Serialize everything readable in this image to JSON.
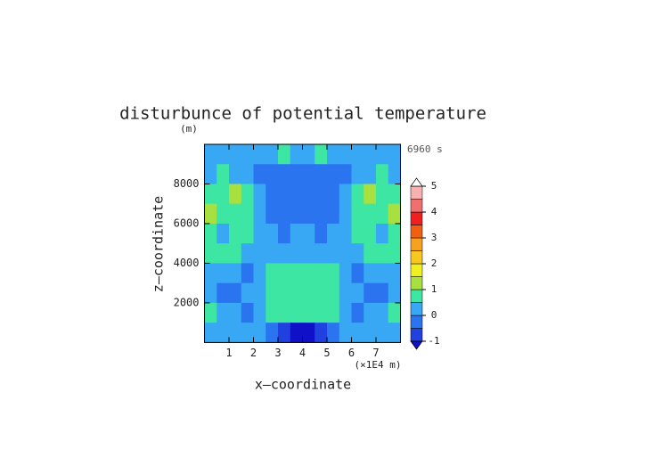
{
  "chart_data": {
    "type": "contour",
    "title": "disturbunce of potential temperature",
    "y_unit": "(m)",
    "time_label": "6960 s",
    "x_label": "x—coordinate",
    "x_unit": "(×1E4 m)",
    "y_label": "z—coordinate",
    "xlim": [
      0,
      8
    ],
    "xticks": [
      1,
      2,
      3,
      4,
      5,
      6,
      7
    ],
    "ylim": [
      0,
      10000
    ],
    "yticks": [
      2000,
      4000,
      6000,
      8000
    ],
    "x": [
      0.25,
      0.75,
      1.25,
      1.75,
      2.25,
      2.75,
      3.25,
      3.75,
      4.25,
      4.75,
      5.25,
      5.75,
      6.25,
      6.75,
      7.25,
      7.75
    ],
    "y": [
      9500,
      8500,
      7500,
      6500,
      5500,
      4500,
      3500,
      2500,
      1500,
      500
    ],
    "z": [
      [
        0.2,
        0.2,
        0.2,
        0.3,
        0.2,
        0.3,
        0.7,
        0.3,
        0.3,
        0.7,
        0.3,
        0.2,
        0.3,
        0.2,
        0.2,
        0.2
      ],
      [
        0.3,
        0.6,
        0.4,
        0.1,
        -0.2,
        -0.3,
        -0.3,
        -0.2,
        -0.2,
        -0.3,
        -0.3,
        -0.2,
        0.1,
        0.4,
        0.6,
        0.3
      ],
      [
        0.6,
        0.8,
        1.1,
        0.6,
        0.1,
        -0.2,
        -0.3,
        -0.3,
        -0.3,
        -0.3,
        -0.2,
        0.1,
        0.6,
        1.1,
        0.8,
        0.6
      ],
      [
        1.1,
        0.7,
        0.6,
        0.7,
        0.2,
        -0.2,
        -0.3,
        -0.2,
        -0.2,
        -0.3,
        -0.2,
        0.2,
        0.7,
        0.6,
        0.7,
        1.1
      ],
      [
        0.8,
        0.3,
        0.7,
        0.6,
        0.3,
        0.1,
        -0.2,
        0.1,
        0.1,
        -0.2,
        0.1,
        0.3,
        0.6,
        0.7,
        0.3,
        0.8
      ],
      [
        0.6,
        0.6,
        0.7,
        0.3,
        0.2,
        0.2,
        0.1,
        0.2,
        0.2,
        0.1,
        0.2,
        0.2,
        0.3,
        0.7,
        0.6,
        0.6
      ],
      [
        0.2,
        0.3,
        0.1,
        -0.1,
        0.2,
        0.6,
        0.7,
        0.7,
        0.7,
        0.7,
        0.6,
        0.2,
        -0.1,
        0.1,
        0.3,
        0.2
      ],
      [
        0.2,
        -0.1,
        -0.2,
        0.1,
        0.3,
        0.7,
        0.8,
        0.7,
        0.7,
        0.8,
        0.7,
        0.3,
        0.1,
        -0.2,
        -0.1,
        0.2
      ],
      [
        0.9,
        0.3,
        0.2,
        -0.2,
        0.2,
        0.6,
        0.7,
        0.6,
        0.6,
        0.7,
        0.6,
        0.2,
        -0.2,
        0.2,
        0.3,
        0.9
      ],
      [
        0.2,
        0.1,
        0.2,
        0.3,
        0.1,
        -0.2,
        -0.6,
        -1.1,
        -1.1,
        -0.6,
        -0.2,
        0.1,
        0.3,
        0.2,
        0.1,
        0.2
      ]
    ],
    "levels": [
      -1,
      -0.5,
      0,
      0.5,
      1,
      1.5,
      2,
      2.5,
      3,
      3.5,
      4,
      4.5,
      5
    ],
    "colors": [
      "#1010c8",
      "#2040e0",
      "#2a74f0",
      "#38a8f4",
      "#3ee6a4",
      "#a8e040",
      "#f0f020",
      "#f8c820",
      "#f8a020",
      "#f06010",
      "#f02020",
      "#f07070",
      "#f8b0b0",
      "#ffffff"
    ],
    "cbticks": [
      -1,
      0,
      1,
      2,
      3,
      4,
      5
    ]
  }
}
